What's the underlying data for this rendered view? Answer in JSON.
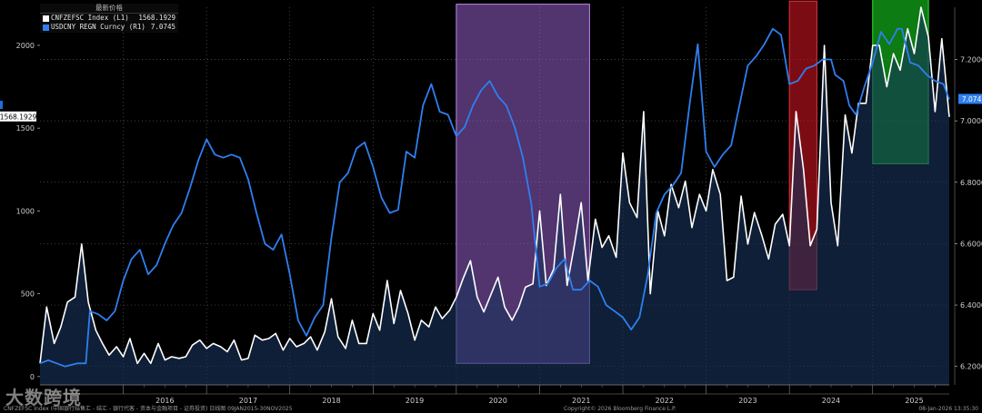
{
  "legend": {
    "header": "最新价格",
    "rows": [
      {
        "name": "CNFZEFSC Index  (L1)",
        "value": "1568.1929",
        "color": "#ffffff"
      },
      {
        "name": "USDCNY REGN Curncy  (R1)",
        "value": "7.0745",
        "color": "#2f7ff0"
      }
    ]
  },
  "footer": {
    "left": "CNFZEFSC Index (中国银行结售汇 - 结汇 - 银行代客 - 资本与金融项目 - 证券投资) 日线图 09JAN2015-30NOV2025",
    "center": "Copyright© 2026 Bloomberg Finance L.P.",
    "right": "08-Jan-2026 13:35:30"
  },
  "watermark": "大数跨境",
  "chart_data": {
    "type": "line",
    "x_range": [
      2015.0,
      2025.92
    ],
    "left_axis": {
      "ylim": [
        -50,
        2230
      ],
      "ticks": [
        0,
        500,
        1000,
        1500,
        2000
      ]
    },
    "right_axis": {
      "ylim": [
        6.14,
        7.37
      ],
      "ticks": [
        "6.2000",
        "6.4000",
        "6.6000",
        "6.8000",
        "7.0000",
        "7.2000"
      ]
    },
    "xticks": [
      "2016",
      "2017",
      "2018",
      "2019",
      "2020",
      "2021",
      "2022",
      "2023",
      "2024",
      "2025"
    ],
    "last_value_labels": {
      "left": "1568.1929",
      "right": "7.0745"
    },
    "series": [
      {
        "name": "CNFZEFSC Index",
        "axis": "left",
        "color": "#ffffff",
        "points": [
          [
            2015.0,
            80
          ],
          [
            2015.08,
            420
          ],
          [
            2015.17,
            200
          ],
          [
            2015.25,
            300
          ],
          [
            2015.33,
            450
          ],
          [
            2015.42,
            480
          ],
          [
            2015.5,
            800
          ],
          [
            2015.58,
            450
          ],
          [
            2015.67,
            280
          ],
          [
            2015.75,
            200
          ],
          [
            2015.83,
            130
          ],
          [
            2015.92,
            180
          ],
          [
            2016.0,
            120
          ],
          [
            2016.08,
            230
          ],
          [
            2016.17,
            80
          ],
          [
            2016.25,
            140
          ],
          [
            2016.33,
            80
          ],
          [
            2016.42,
            200
          ],
          [
            2016.5,
            100
          ],
          [
            2016.58,
            120
          ],
          [
            2016.67,
            110
          ],
          [
            2016.75,
            120
          ],
          [
            2016.83,
            190
          ],
          [
            2016.92,
            220
          ],
          [
            2017.0,
            170
          ],
          [
            2017.08,
            200
          ],
          [
            2017.17,
            180
          ],
          [
            2017.25,
            150
          ],
          [
            2017.33,
            220
          ],
          [
            2017.42,
            100
          ],
          [
            2017.5,
            110
          ],
          [
            2017.58,
            250
          ],
          [
            2017.67,
            220
          ],
          [
            2017.75,
            230
          ],
          [
            2017.83,
            260
          ],
          [
            2017.92,
            160
          ],
          [
            2018.0,
            230
          ],
          [
            2018.08,
            180
          ],
          [
            2018.17,
            200
          ],
          [
            2018.25,
            240
          ],
          [
            2018.33,
            160
          ],
          [
            2018.42,
            270
          ],
          [
            2018.5,
            470
          ],
          [
            2018.58,
            240
          ],
          [
            2018.67,
            170
          ],
          [
            2018.75,
            340
          ],
          [
            2018.83,
            200
          ],
          [
            2018.92,
            200
          ],
          [
            2019.0,
            380
          ],
          [
            2019.08,
            280
          ],
          [
            2019.17,
            580
          ],
          [
            2019.25,
            320
          ],
          [
            2019.33,
            520
          ],
          [
            2019.42,
            380
          ],
          [
            2019.5,
            220
          ],
          [
            2019.58,
            340
          ],
          [
            2019.67,
            300
          ],
          [
            2019.75,
            420
          ],
          [
            2019.83,
            350
          ],
          [
            2019.92,
            400
          ],
          [
            2020.0,
            480
          ],
          [
            2020.08,
            590
          ],
          [
            2020.17,
            700
          ],
          [
            2020.25,
            480
          ],
          [
            2020.33,
            390
          ],
          [
            2020.42,
            500
          ],
          [
            2020.5,
            600
          ],
          [
            2020.58,
            420
          ],
          [
            2020.67,
            340
          ],
          [
            2020.75,
            420
          ],
          [
            2020.83,
            540
          ],
          [
            2020.92,
            560
          ],
          [
            2021.0,
            1000
          ],
          [
            2021.08,
            550
          ],
          [
            2021.17,
            650
          ],
          [
            2021.25,
            1100
          ],
          [
            2021.33,
            550
          ],
          [
            2021.42,
            800
          ],
          [
            2021.5,
            1050
          ],
          [
            2021.58,
            580
          ],
          [
            2021.67,
            950
          ],
          [
            2021.75,
            780
          ],
          [
            2021.83,
            850
          ],
          [
            2021.92,
            720
          ],
          [
            2022.0,
            1350
          ],
          [
            2022.08,
            1050
          ],
          [
            2022.17,
            960
          ],
          [
            2022.25,
            1600
          ],
          [
            2022.33,
            500
          ],
          [
            2022.42,
            1000
          ],
          [
            2022.5,
            850
          ],
          [
            2022.58,
            1160
          ],
          [
            2022.67,
            1020
          ],
          [
            2022.75,
            1180
          ],
          [
            2022.83,
            900
          ],
          [
            2022.92,
            1100
          ],
          [
            2023.0,
            1000
          ],
          [
            2023.08,
            1250
          ],
          [
            2023.17,
            1100
          ],
          [
            2023.25,
            580
          ],
          [
            2023.33,
            600
          ],
          [
            2023.42,
            1090
          ],
          [
            2023.5,
            800
          ],
          [
            2023.58,
            990
          ],
          [
            2023.67,
            850
          ],
          [
            2023.75,
            710
          ],
          [
            2023.83,
            920
          ],
          [
            2023.92,
            980
          ],
          [
            2024.0,
            790
          ],
          [
            2024.08,
            1600
          ],
          [
            2024.17,
            1250
          ],
          [
            2024.25,
            790
          ],
          [
            2024.33,
            890
          ],
          [
            2024.42,
            2000
          ],
          [
            2024.5,
            1050
          ],
          [
            2024.58,
            790
          ],
          [
            2024.67,
            1580
          ],
          [
            2024.75,
            1350
          ],
          [
            2024.83,
            1650
          ],
          [
            2024.92,
            1650
          ],
          [
            2025.0,
            2000
          ],
          [
            2025.08,
            2000
          ],
          [
            2025.17,
            1750
          ],
          [
            2025.25,
            1950
          ],
          [
            2025.33,
            1850
          ],
          [
            2025.42,
            2100
          ],
          [
            2025.5,
            1950
          ],
          [
            2025.58,
            2230
          ],
          [
            2025.67,
            2050
          ],
          [
            2025.75,
            1600
          ],
          [
            2025.83,
            2040
          ],
          [
            2025.92,
            1568
          ]
        ]
      },
      {
        "name": "USDCNY REGN Curncy",
        "axis": "right",
        "color": "#2f7ff0",
        "points": [
          [
            2015.0,
            6.21
          ],
          [
            2015.1,
            6.22
          ],
          [
            2015.2,
            6.21
          ],
          [
            2015.3,
            6.2
          ],
          [
            2015.45,
            6.21
          ],
          [
            2015.55,
            6.21
          ],
          [
            2015.6,
            6.38
          ],
          [
            2015.7,
            6.37
          ],
          [
            2015.8,
            6.35
          ],
          [
            2015.9,
            6.38
          ],
          [
            2016.0,
            6.48
          ],
          [
            2016.1,
            6.55
          ],
          [
            2016.2,
            6.58
          ],
          [
            2016.3,
            6.5
          ],
          [
            2016.4,
            6.53
          ],
          [
            2016.5,
            6.6
          ],
          [
            2016.6,
            6.66
          ],
          [
            2016.7,
            6.7
          ],
          [
            2016.8,
            6.78
          ],
          [
            2016.9,
            6.87
          ],
          [
            2017.0,
            6.94
          ],
          [
            2017.1,
            6.89
          ],
          [
            2017.2,
            6.88
          ],
          [
            2017.3,
            6.89
          ],
          [
            2017.4,
            6.88
          ],
          [
            2017.5,
            6.81
          ],
          [
            2017.6,
            6.7
          ],
          [
            2017.7,
            6.6
          ],
          [
            2017.8,
            6.58
          ],
          [
            2017.9,
            6.63
          ],
          [
            2018.0,
            6.5
          ],
          [
            2018.1,
            6.35
          ],
          [
            2018.2,
            6.3
          ],
          [
            2018.3,
            6.36
          ],
          [
            2018.4,
            6.4
          ],
          [
            2018.5,
            6.62
          ],
          [
            2018.6,
            6.8
          ],
          [
            2018.7,
            6.83
          ],
          [
            2018.8,
            6.91
          ],
          [
            2018.9,
            6.93
          ],
          [
            2019.0,
            6.85
          ],
          [
            2019.1,
            6.75
          ],
          [
            2019.2,
            6.7
          ],
          [
            2019.3,
            6.71
          ],
          [
            2019.4,
            6.9
          ],
          [
            2019.5,
            6.88
          ],
          [
            2019.6,
            7.05
          ],
          [
            2019.7,
            7.12
          ],
          [
            2019.8,
            7.03
          ],
          [
            2019.9,
            7.02
          ],
          [
            2020.0,
            6.95
          ],
          [
            2020.1,
            6.98
          ],
          [
            2020.2,
            7.05
          ],
          [
            2020.3,
            7.1
          ],
          [
            2020.4,
            7.13
          ],
          [
            2020.5,
            7.08
          ],
          [
            2020.6,
            7.05
          ],
          [
            2020.7,
            6.98
          ],
          [
            2020.8,
            6.88
          ],
          [
            2020.9,
            6.73
          ],
          [
            2021.0,
            6.46
          ],
          [
            2021.1,
            6.47
          ],
          [
            2021.2,
            6.52
          ],
          [
            2021.3,
            6.55
          ],
          [
            2021.4,
            6.45
          ],
          [
            2021.5,
            6.45
          ],
          [
            2021.6,
            6.48
          ],
          [
            2021.7,
            6.46
          ],
          [
            2021.8,
            6.4
          ],
          [
            2021.9,
            6.38
          ],
          [
            2022.0,
            6.36
          ],
          [
            2022.1,
            6.32
          ],
          [
            2022.2,
            6.36
          ],
          [
            2022.3,
            6.5
          ],
          [
            2022.4,
            6.7
          ],
          [
            2022.5,
            6.76
          ],
          [
            2022.6,
            6.79
          ],
          [
            2022.7,
            6.83
          ],
          [
            2022.8,
            7.05
          ],
          [
            2022.9,
            7.25
          ],
          [
            2023.0,
            6.9
          ],
          [
            2023.1,
            6.85
          ],
          [
            2023.2,
            6.89
          ],
          [
            2023.3,
            6.92
          ],
          [
            2023.4,
            7.05
          ],
          [
            2023.5,
            7.18
          ],
          [
            2023.6,
            7.21
          ],
          [
            2023.7,
            7.25
          ],
          [
            2023.8,
            7.3
          ],
          [
            2023.9,
            7.28
          ],
          [
            2024.0,
            7.12
          ],
          [
            2024.1,
            7.13
          ],
          [
            2024.2,
            7.17
          ],
          [
            2024.3,
            7.18
          ],
          [
            2024.4,
            7.2
          ],
          [
            2024.5,
            7.2
          ],
          [
            2024.55,
            7.15
          ],
          [
            2024.65,
            7.13
          ],
          [
            2024.72,
            7.05
          ],
          [
            2024.8,
            7.02
          ],
          [
            2024.9,
            7.11
          ],
          [
            2025.0,
            7.19
          ],
          [
            2025.1,
            7.29
          ],
          [
            2025.2,
            7.25
          ],
          [
            2025.3,
            7.3
          ],
          [
            2025.35,
            7.3
          ],
          [
            2025.45,
            7.19
          ],
          [
            2025.55,
            7.18
          ],
          [
            2025.65,
            7.15
          ],
          [
            2025.75,
            7.13
          ],
          [
            2025.85,
            7.12
          ],
          [
            2025.92,
            7.07
          ]
        ]
      }
    ],
    "annotation_boxes": [
      {
        "x": [
          2020.0,
          2021.6
        ],
        "y_right": [
          6.21,
          7.38
        ],
        "color": "purple"
      },
      {
        "x": [
          2024.0,
          2024.33
        ],
        "y_right": [
          6.45,
          7.39
        ],
        "color": "red"
      },
      {
        "x": [
          2025.0,
          2025.67
        ],
        "y_right": [
          6.86,
          7.41
        ],
        "color": "green"
      }
    ]
  }
}
